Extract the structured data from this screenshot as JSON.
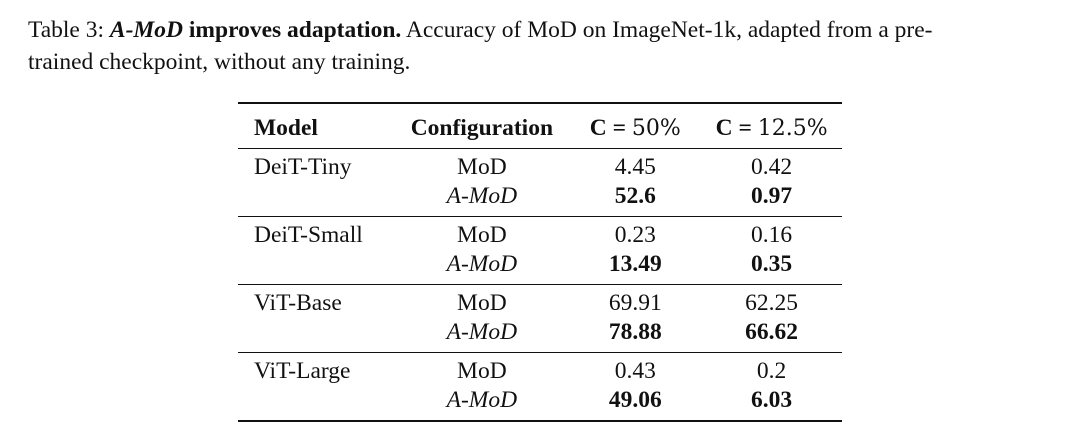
{
  "caption": {
    "label": "Table 3:",
    "title_italic": "A-MoD",
    "title_rest": "improves adaptation.",
    "text_line1": "Accuracy of MoD on ImageNet-1k, adapted from a pre-",
    "text_line2": "trained checkpoint, without any training."
  },
  "table": {
    "headers": {
      "model": "Model",
      "configuration": "Configuration",
      "c50_prefix": "C =",
      "c50_value": "50%",
      "c125_prefix": "C =",
      "c125_value": "12.5%"
    },
    "groups": [
      {
        "model": "DeiT-Tiny",
        "rows": [
          {
            "config": "MoD",
            "c50": "4.45",
            "c125": "0.42"
          },
          {
            "config": "A-MoD",
            "c50": "52.6",
            "c125": "0.97"
          }
        ]
      },
      {
        "model": "DeiT-Small",
        "rows": [
          {
            "config": "MoD",
            "c50": "0.23",
            "c125": "0.16"
          },
          {
            "config": "A-MoD",
            "c50": "13.49",
            "c125": "0.35"
          }
        ]
      },
      {
        "model": "ViT-Base",
        "rows": [
          {
            "config": "MoD",
            "c50": "69.91",
            "c125": "62.25"
          },
          {
            "config": "A-MoD",
            "c50": "78.88",
            "c125": "66.62"
          }
        ]
      },
      {
        "model": "ViT-Large",
        "rows": [
          {
            "config": "MoD",
            "c50": "0.43",
            "c125": "0.2"
          },
          {
            "config": "A-MoD",
            "c50": "49.06",
            "c125": "6.03"
          }
        ]
      }
    ]
  }
}
